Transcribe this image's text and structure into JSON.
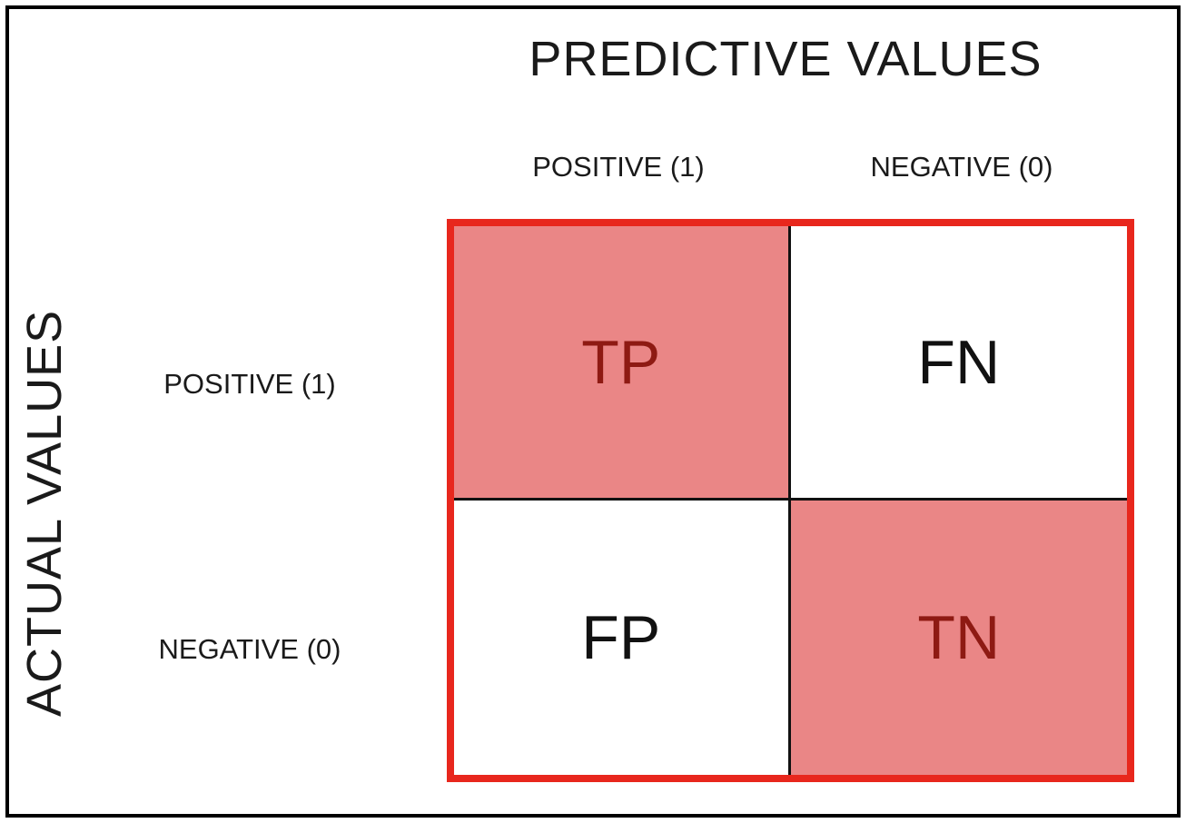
{
  "diagram": {
    "title": "PREDICTIVE VALUES",
    "y_axis_label": "ACTUAL VALUES",
    "columns": [
      {
        "label": "POSITIVE (1)"
      },
      {
        "label": "NEGATIVE (0)"
      }
    ],
    "rows": [
      {
        "label": "POSITIVE (1)"
      },
      {
        "label": "NEGATIVE (0)"
      }
    ],
    "cells": {
      "tp": "TP",
      "fn": "FN",
      "fp": "FP",
      "tn": "TN"
    },
    "colors": {
      "highlight_fill": "#EA8686",
      "highlight_text": "#8E1A13",
      "matrix_border": "#E8271D",
      "grid_line": "#111111",
      "text": "#1A1A1A",
      "background": "#FFFFFF",
      "outer_frame": "#000000"
    }
  }
}
